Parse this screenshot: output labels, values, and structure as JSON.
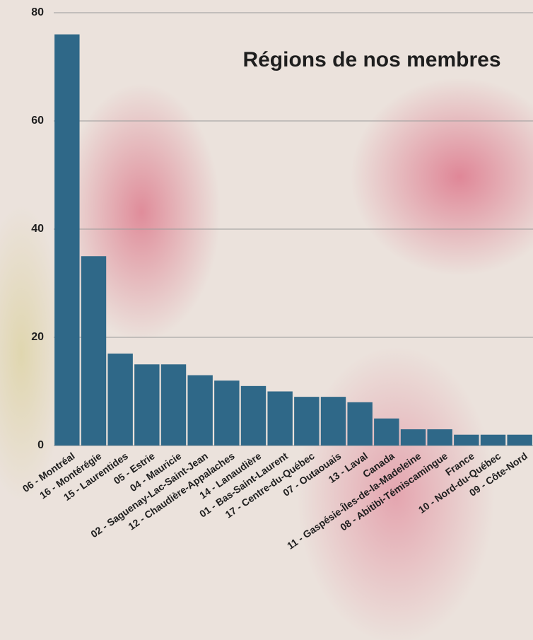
{
  "chart_data": {
    "type": "bar",
    "title": "Régions de nos membres",
    "categories": [
      "06 - Montréal",
      "16 - Montérégie",
      "15 - Laurentides",
      "05 - Estrie",
      "04 - Mauricie",
      "02 - Saguenay-Lac-Saint-Jean",
      "12 - Chaudière-Appalaches",
      "14 - Lanaudière",
      "01 - Bas-Saint-Laurent",
      "17 - Centre-du-Québec",
      "07 - Outaouais",
      "13 - Laval",
      "Canada",
      "11 - Gaspésie-Îles-de-la-Madeleine",
      "08 - Abitibi-Témiscamingue",
      "France",
      "10 - Nord-du-Québec",
      "09 - Côte-Nord"
    ],
    "values": [
      76,
      35,
      17,
      15,
      15,
      13,
      12,
      11,
      10,
      9,
      9,
      8,
      5,
      3,
      3,
      2,
      2,
      2
    ],
    "color": "#2f6888",
    "ylim": [
      0,
      80
    ],
    "yticks": [
      0,
      20,
      40,
      60,
      80
    ],
    "grid": true
  }
}
